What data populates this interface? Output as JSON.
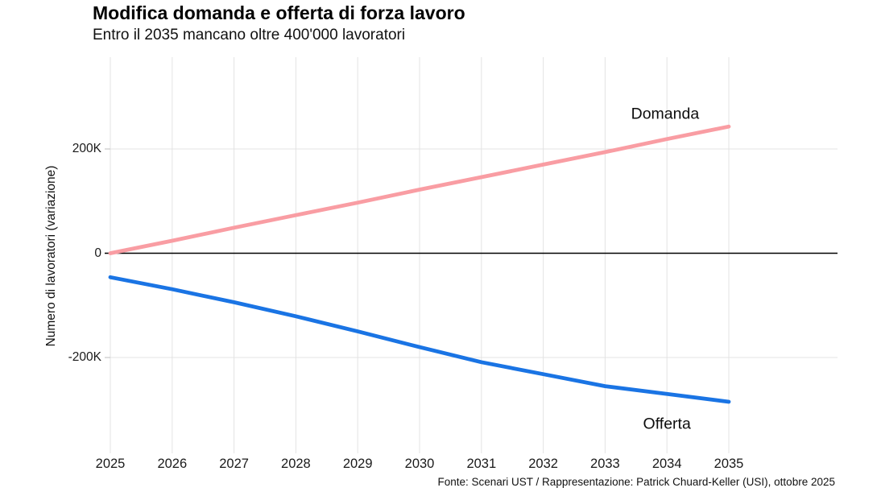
{
  "header": {
    "title": "Modifica domanda e offerta di forza lavoro",
    "subtitle": "Entro il 2035 mancano oltre 400'000 lavoratori"
  },
  "footer": {
    "source": "Fonte: Scenari UST / Rappresentazione: Patrick Chuard-Keller (USI), ottobre 2025"
  },
  "chart_data": {
    "type": "line",
    "title": "Modifica domanda e offerta di forza lavoro",
    "subtitle": "Entro il 2035 mancano oltre 400'000 lavoratori",
    "xlabel": "",
    "ylabel": "Numero di lavoratori (variazione)",
    "values_unit": "thousands of workers (K)",
    "x": [
      2025,
      2026,
      2027,
      2028,
      2029,
      2030,
      2031,
      2032,
      2033,
      2034,
      2035
    ],
    "series": [
      {
        "name": "Domanda",
        "color": "#f99da3",
        "values": [
          0,
          24,
          49,
          73,
          97,
          122,
          146,
          170,
          194,
          219,
          243
        ],
        "label_anchor": {
          "x": 2033.97,
          "value": 266
        }
      },
      {
        "name": "Offerta",
        "color": "#1a74e4",
        "values": [
          -46,
          -69,
          -94,
          -121,
          -150,
          -180,
          -209,
          -232,
          -255,
          -270,
          -285
        ],
        "label_anchor": {
          "x": 2034.0,
          "value": -328
        }
      }
    ],
    "yticks": [
      {
        "value": 200,
        "label": "200K"
      },
      {
        "value": 0,
        "label": "0"
      },
      {
        "value": -200,
        "label": "-200K"
      }
    ],
    "xticks": [
      "2025",
      "2026",
      "2027",
      "2028",
      "2029",
      "2030",
      "2031",
      "2032",
      "2033",
      "2034",
      "2035"
    ],
    "ylim": [
      -371,
      376
    ],
    "xlim": [
      2025,
      2036.8
    ],
    "grid": true,
    "zero_line": true,
    "legend_position": "direct-labels",
    "colors": {
      "gridline": "#e3e3e3",
      "tick_mark": "#c9c9c9",
      "zero_line": "#000000",
      "background": "#ffffff",
      "text": "#1a1a1a"
    }
  }
}
